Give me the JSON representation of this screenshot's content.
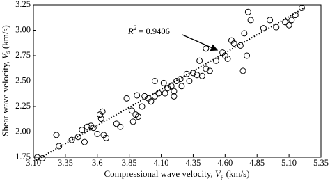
{
  "chart_data": {
    "type": "scatter",
    "x_label": [
      "Compressional wave velocity, ",
      "V",
      "p",
      " (km/s)"
    ],
    "y_label": [
      "Shear wave velocity, ",
      "V",
      "s",
      " (km/s)"
    ],
    "annotation": [
      "R",
      "2",
      " = 0.9406"
    ],
    "xlim": [
      3.1,
      5.35
    ],
    "ylim": [
      1.75,
      3.25
    ],
    "xticks": [
      {
        "value": 3.1,
        "label": "3.10"
      },
      3.35,
      3.6,
      3.85,
      {
        "value": 4.1,
        "label": "4.10"
      },
      4.35,
      {
        "value": 4.6,
        "label": "4.60"
      },
      4.85,
      {
        "value": 5.1,
        "label": "5.10"
      },
      5.35
    ],
    "yticks": [
      1.75,
      {
        "value": 2.0,
        "label": "2.00"
      },
      2.25,
      {
        "value": 2.5,
        "label": "2.50"
      },
      2.75,
      {
        "value": 3.0,
        "label": "3.00"
      },
      3.25
    ],
    "marker_color": "#000000",
    "trendline": {
      "x": [
        3.12,
        5.22
      ],
      "y": [
        1.72,
        3.22
      ],
      "color": "#000000"
    },
    "x": [
      3.13,
      3.17,
      3.28,
      3.3,
      3.4,
      3.45,
      3.48,
      3.5,
      3.52,
      3.55,
      3.57,
      3.6,
      3.62,
      3.64,
      3.65,
      3.67,
      3.63,
      3.75,
      3.78,
      3.83,
      3.88,
      3.9,
      3.92,
      3.91,
      3.87,
      3.97,
      4.0,
      4.02,
      4.05,
      4.12,
      4.13,
      4.15,
      4.18,
      4.2,
      4.22,
      4.25,
      4.3,
      4.32,
      4.35,
      4.38,
      4.42,
      4.45,
      4.48,
      4.4,
      4.45,
      4.53,
      4.58,
      4.6,
      4.62,
      4.65,
      4.67,
      4.72,
      4.74,
      4.77,
      4.8,
      4.78,
      4.75,
      4.9,
      4.95,
      5.0,
      5.07,
      5.1,
      5.12,
      5.15,
      5.2,
      4.2,
      4.05,
      3.95,
      4.08,
      4.26
    ],
    "y": [
      1.75,
      1.74,
      1.97,
      1.86,
      1.92,
      1.95,
      2.02,
      1.9,
      2.05,
      2.06,
      2.04,
      1.98,
      2.17,
      2.2,
      1.97,
      1.94,
      2.13,
      2.08,
      2.05,
      2.33,
      2.1,
      2.17,
      2.15,
      2.36,
      2.21,
      2.35,
      2.33,
      2.3,
      2.5,
      2.48,
      2.38,
      2.43,
      2.45,
      2.4,
      2.5,
      2.52,
      2.57,
      2.5,
      2.58,
      2.56,
      2.55,
      2.62,
      2.6,
      2.7,
      2.82,
      2.7,
      2.78,
      2.75,
      2.72,
      2.9,
      2.87,
      2.85,
      2.6,
      2.75,
      3.1,
      3.18,
      2.97,
      3.02,
      3.1,
      3.03,
      3.08,
      3.05,
      3.1,
      3.15,
      3.22,
      2.35,
      2.35,
      2.25,
      2.38,
      2.45
    ]
  }
}
